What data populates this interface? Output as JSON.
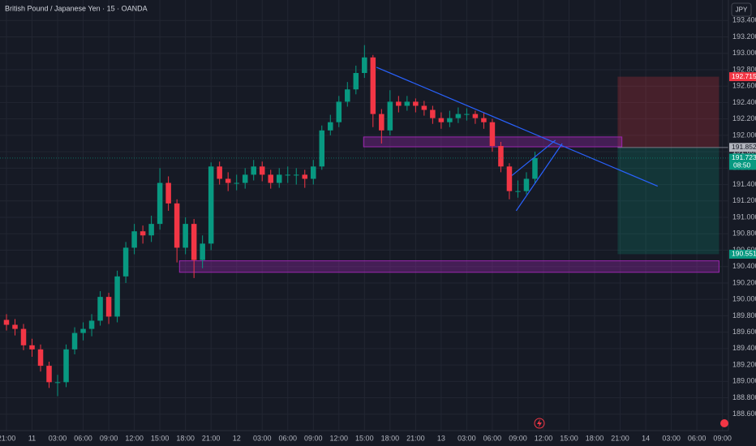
{
  "chart_data": {
    "type": "candlestick",
    "title": "British Pound / Japanese Yen · 15 · OANDA",
    "currency": "JPY",
    "up_color": "#089981",
    "down_color": "#f23645",
    "grid": true,
    "x": [
      0,
      1,
      2,
      3,
      4,
      5,
      6,
      7,
      8,
      9,
      10,
      11,
      12,
      13,
      14,
      15,
      16,
      17,
      18,
      19,
      20,
      21,
      22,
      23,
      24,
      25,
      26,
      27,
      28,
      29,
      30,
      31,
      32,
      33,
      34,
      35,
      36,
      37,
      38,
      39,
      40,
      41,
      42,
      43,
      44,
      45,
      46,
      47,
      48,
      49,
      50,
      51,
      52,
      53,
      54,
      55,
      56,
      57,
      58,
      59,
      60,
      61,
      62
    ],
    "open": [
      189.75,
      189.69,
      189.64,
      189.44,
      189.39,
      189.19,
      188.99,
      188.99,
      189.39,
      189.59,
      189.64,
      189.74,
      190.03,
      189.79,
      190.28,
      190.63,
      190.83,
      190.78,
      190.92,
      191.42,
      191.17,
      190.63,
      190.92,
      190.48,
      190.68,
      191.62,
      191.47,
      191.42,
      191.42,
      191.52,
      191.62,
      191.52,
      191.42,
      191.52,
      191.52,
      191.52,
      191.47,
      191.62,
      192.06,
      192.16,
      192.41,
      192.56,
      192.76,
      192.95,
      192.26,
      192.06,
      192.41,
      192.36,
      192.41,
      192.36,
      192.31,
      192.21,
      192.16,
      192.21,
      192.26,
      192.26,
      192.21,
      192.16,
      191.87,
      191.62,
      191.32,
      191.32,
      191.47
    ],
    "high": [
      189.82,
      189.76,
      189.7,
      189.52,
      189.45,
      189.24,
      189.08,
      189.45,
      189.66,
      189.72,
      189.82,
      190.1,
      190.08,
      190.35,
      190.7,
      190.92,
      190.9,
      191.02,
      191.6,
      191.5,
      191.22,
      191.0,
      190.98,
      190.78,
      191.67,
      191.68,
      191.55,
      191.52,
      191.6,
      191.7,
      191.68,
      191.58,
      191.6,
      191.62,
      191.6,
      191.58,
      191.7,
      192.12,
      192.25,
      192.48,
      192.65,
      192.85,
      193.1,
      192.98,
      192.32,
      192.55,
      192.48,
      192.48,
      192.45,
      192.42,
      192.36,
      192.28,
      192.3,
      192.34,
      192.33,
      192.3,
      192.28,
      192.2,
      191.92,
      191.66,
      191.45,
      191.55,
      191.8
    ],
    "low": [
      189.62,
      189.56,
      189.38,
      189.3,
      189.12,
      188.92,
      188.82,
      188.93,
      189.33,
      189.5,
      189.55,
      189.68,
      189.7,
      189.72,
      190.2,
      190.55,
      190.68,
      190.7,
      190.85,
      191.08,
      190.45,
      190.55,
      190.26,
      190.38,
      190.6,
      191.4,
      191.32,
      191.33,
      191.35,
      191.45,
      191.44,
      191.35,
      191.36,
      191.42,
      191.4,
      191.36,
      191.4,
      191.58,
      192.0,
      192.1,
      192.35,
      192.5,
      192.7,
      192.1,
      191.9,
      192.0,
      192.28,
      192.3,
      192.28,
      192.24,
      192.14,
      192.08,
      192.1,
      192.15,
      192.18,
      192.14,
      192.08,
      191.8,
      191.55,
      191.22,
      191.24,
      191.28,
      191.42
    ],
    "close": [
      189.69,
      189.64,
      189.44,
      189.39,
      189.19,
      188.99,
      188.99,
      189.39,
      189.59,
      189.64,
      189.74,
      190.03,
      189.79,
      190.28,
      190.63,
      190.83,
      190.78,
      190.92,
      191.42,
      191.17,
      190.63,
      190.92,
      190.48,
      190.68,
      191.62,
      191.47,
      191.42,
      191.42,
      191.52,
      191.62,
      191.52,
      191.42,
      191.52,
      191.52,
      191.52,
      191.47,
      191.62,
      192.06,
      192.16,
      192.41,
      192.56,
      192.76,
      192.95,
      192.26,
      192.06,
      192.41,
      192.36,
      192.41,
      192.36,
      192.31,
      192.21,
      192.16,
      192.21,
      192.26,
      192.26,
      192.21,
      192.16,
      191.87,
      191.62,
      191.32,
      191.32,
      191.47,
      191.723
    ],
    "xlim": [
      -0.76,
      84.7
    ],
    "ylim": [
      188.4,
      193.65
    ],
    "xticks": [
      {
        "value": 0,
        "label": "21:00"
      },
      {
        "value": 3,
        "label": "11"
      },
      {
        "value": 6,
        "label": "03:00"
      },
      {
        "value": 9,
        "label": "06:00"
      },
      {
        "value": 12,
        "label": "09:00"
      },
      {
        "value": 15,
        "label": "12:00"
      },
      {
        "value": 18,
        "label": "15:00"
      },
      {
        "value": 21,
        "label": "18:00"
      },
      {
        "value": 24,
        "label": "21:00"
      },
      {
        "value": 27,
        "label": "12"
      },
      {
        "value": 30,
        "label": "03:00"
      },
      {
        "value": 33,
        "label": "06:00"
      },
      {
        "value": 36,
        "label": "09:00"
      },
      {
        "value": 39,
        "label": "12:00"
      },
      {
        "value": 42,
        "label": "15:00"
      },
      {
        "value": 45,
        "label": "18:00"
      },
      {
        "value": 48,
        "label": "21:00"
      },
      {
        "value": 51,
        "label": "13"
      },
      {
        "value": 54,
        "label": "03:00"
      },
      {
        "value": 57,
        "label": "06:00"
      },
      {
        "value": 60,
        "label": "09:00"
      },
      {
        "value": 63,
        "label": "12:00"
      },
      {
        "value": 66,
        "label": "15:00"
      },
      {
        "value": 69,
        "label": "18:00"
      },
      {
        "value": 72,
        "label": "21:00"
      },
      {
        "value": 75,
        "label": "14"
      },
      {
        "value": 78,
        "label": "03:00"
      },
      {
        "value": 81,
        "label": "06:00"
      },
      {
        "value": 84,
        "label": "09:00"
      }
    ],
    "yticks": [
      {
        "value": 193.4,
        "label": "193.400"
      },
      {
        "value": 193.2,
        "label": "193.200"
      },
      {
        "value": 193.0,
        "label": "193.000"
      },
      {
        "value": 192.8,
        "label": "192.800"
      },
      {
        "value": 192.6,
        "label": "192.600"
      },
      {
        "value": 192.4,
        "label": "192.400"
      },
      {
        "value": 192.2,
        "label": "192.200"
      },
      {
        "value": 192.0,
        "label": "192.000"
      },
      {
        "value": 191.8,
        "label": "191.800"
      },
      {
        "value": 191.6,
        "label": "191.600"
      },
      {
        "value": 191.4,
        "label": "191.400"
      },
      {
        "value": 191.2,
        "label": "191.200"
      },
      {
        "value": 191.0,
        "label": "191.000"
      },
      {
        "value": 190.8,
        "label": "190.800"
      },
      {
        "value": 190.6,
        "label": "190.600"
      },
      {
        "value": 190.4,
        "label": "190.400"
      },
      {
        "value": 190.2,
        "label": "190.200"
      },
      {
        "value": 190.0,
        "label": "190.000"
      },
      {
        "value": 189.8,
        "label": "189.800"
      },
      {
        "value": 189.6,
        "label": "189.600"
      },
      {
        "value": 189.4,
        "label": "189.400"
      },
      {
        "value": 189.2,
        "label": "189.200"
      },
      {
        "value": 189.0,
        "label": "189.000"
      },
      {
        "value": 188.8,
        "label": "188.800"
      },
      {
        "value": 188.6,
        "label": "188.600"
      }
    ],
    "zones": [
      {
        "x": [
          41.9,
          72.2
        ],
        "y": [
          191.86,
          191.98
        ],
        "color": "#9c27b0"
      },
      {
        "x": [
          20.3,
          83.6
        ],
        "y": [
          190.33,
          190.47
        ],
        "color": "#9c27b0"
      }
    ],
    "trendlines": [
      {
        "x": [
          43.4,
          76.4
        ],
        "y": [
          192.83,
          191.38
        ],
        "color": "#2962ff"
      },
      {
        "x": [
          59.3,
          64.4
        ],
        "y": [
          191.51,
          191.94
        ],
        "color": "#2962ff"
      },
      {
        "x": [
          59.8,
          65.2
        ],
        "y": [
          191.08,
          191.9
        ],
        "color": "#2962ff"
      }
    ],
    "position": {
      "x": [
        71.7,
        83.6
      ],
      "entry": 191.852,
      "stop": 192.715,
      "target": 190.551
    },
    "last_price": 191.723,
    "countdown": "08:50"
  }
}
